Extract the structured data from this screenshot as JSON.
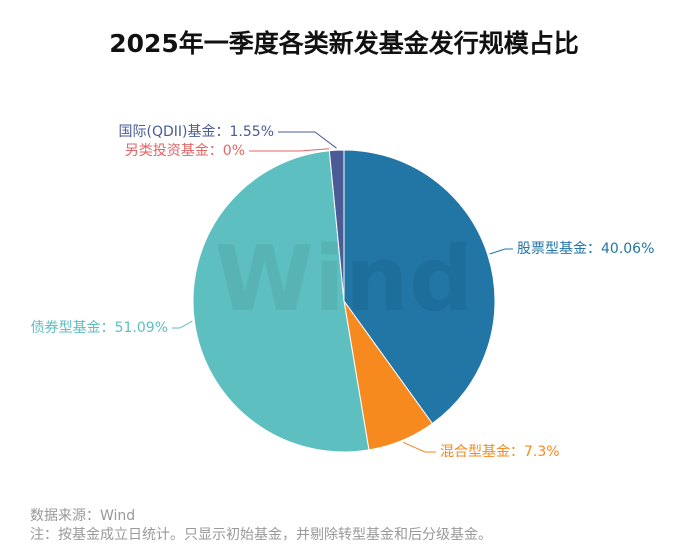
{
  "chart_data": {
    "type": "pie",
    "title": "2025年一季度各类新发基金发行规模占比",
    "categories": [
      "股票型基金",
      "混合型基金",
      "债券型基金",
      "另类投资基金",
      "国际(QDII)基金"
    ],
    "values": [
      40.06,
      7.3,
      51.09,
      0,
      1.55
    ],
    "value_labels": [
      "40.06%",
      "7.3%",
      "51.09%",
      "0%",
      "1.55%"
    ],
    "separator": "：",
    "colors": [
      "#2176a6",
      "#f68a1e",
      "#5dbfc0",
      "#e06666",
      "#4a5b95"
    ],
    "watermark": "Wind",
    "source": "数据来源：Wind",
    "note": "注：按基金成立日统计。只显示初始基金，并剔除转型基金和后分级基金。"
  }
}
